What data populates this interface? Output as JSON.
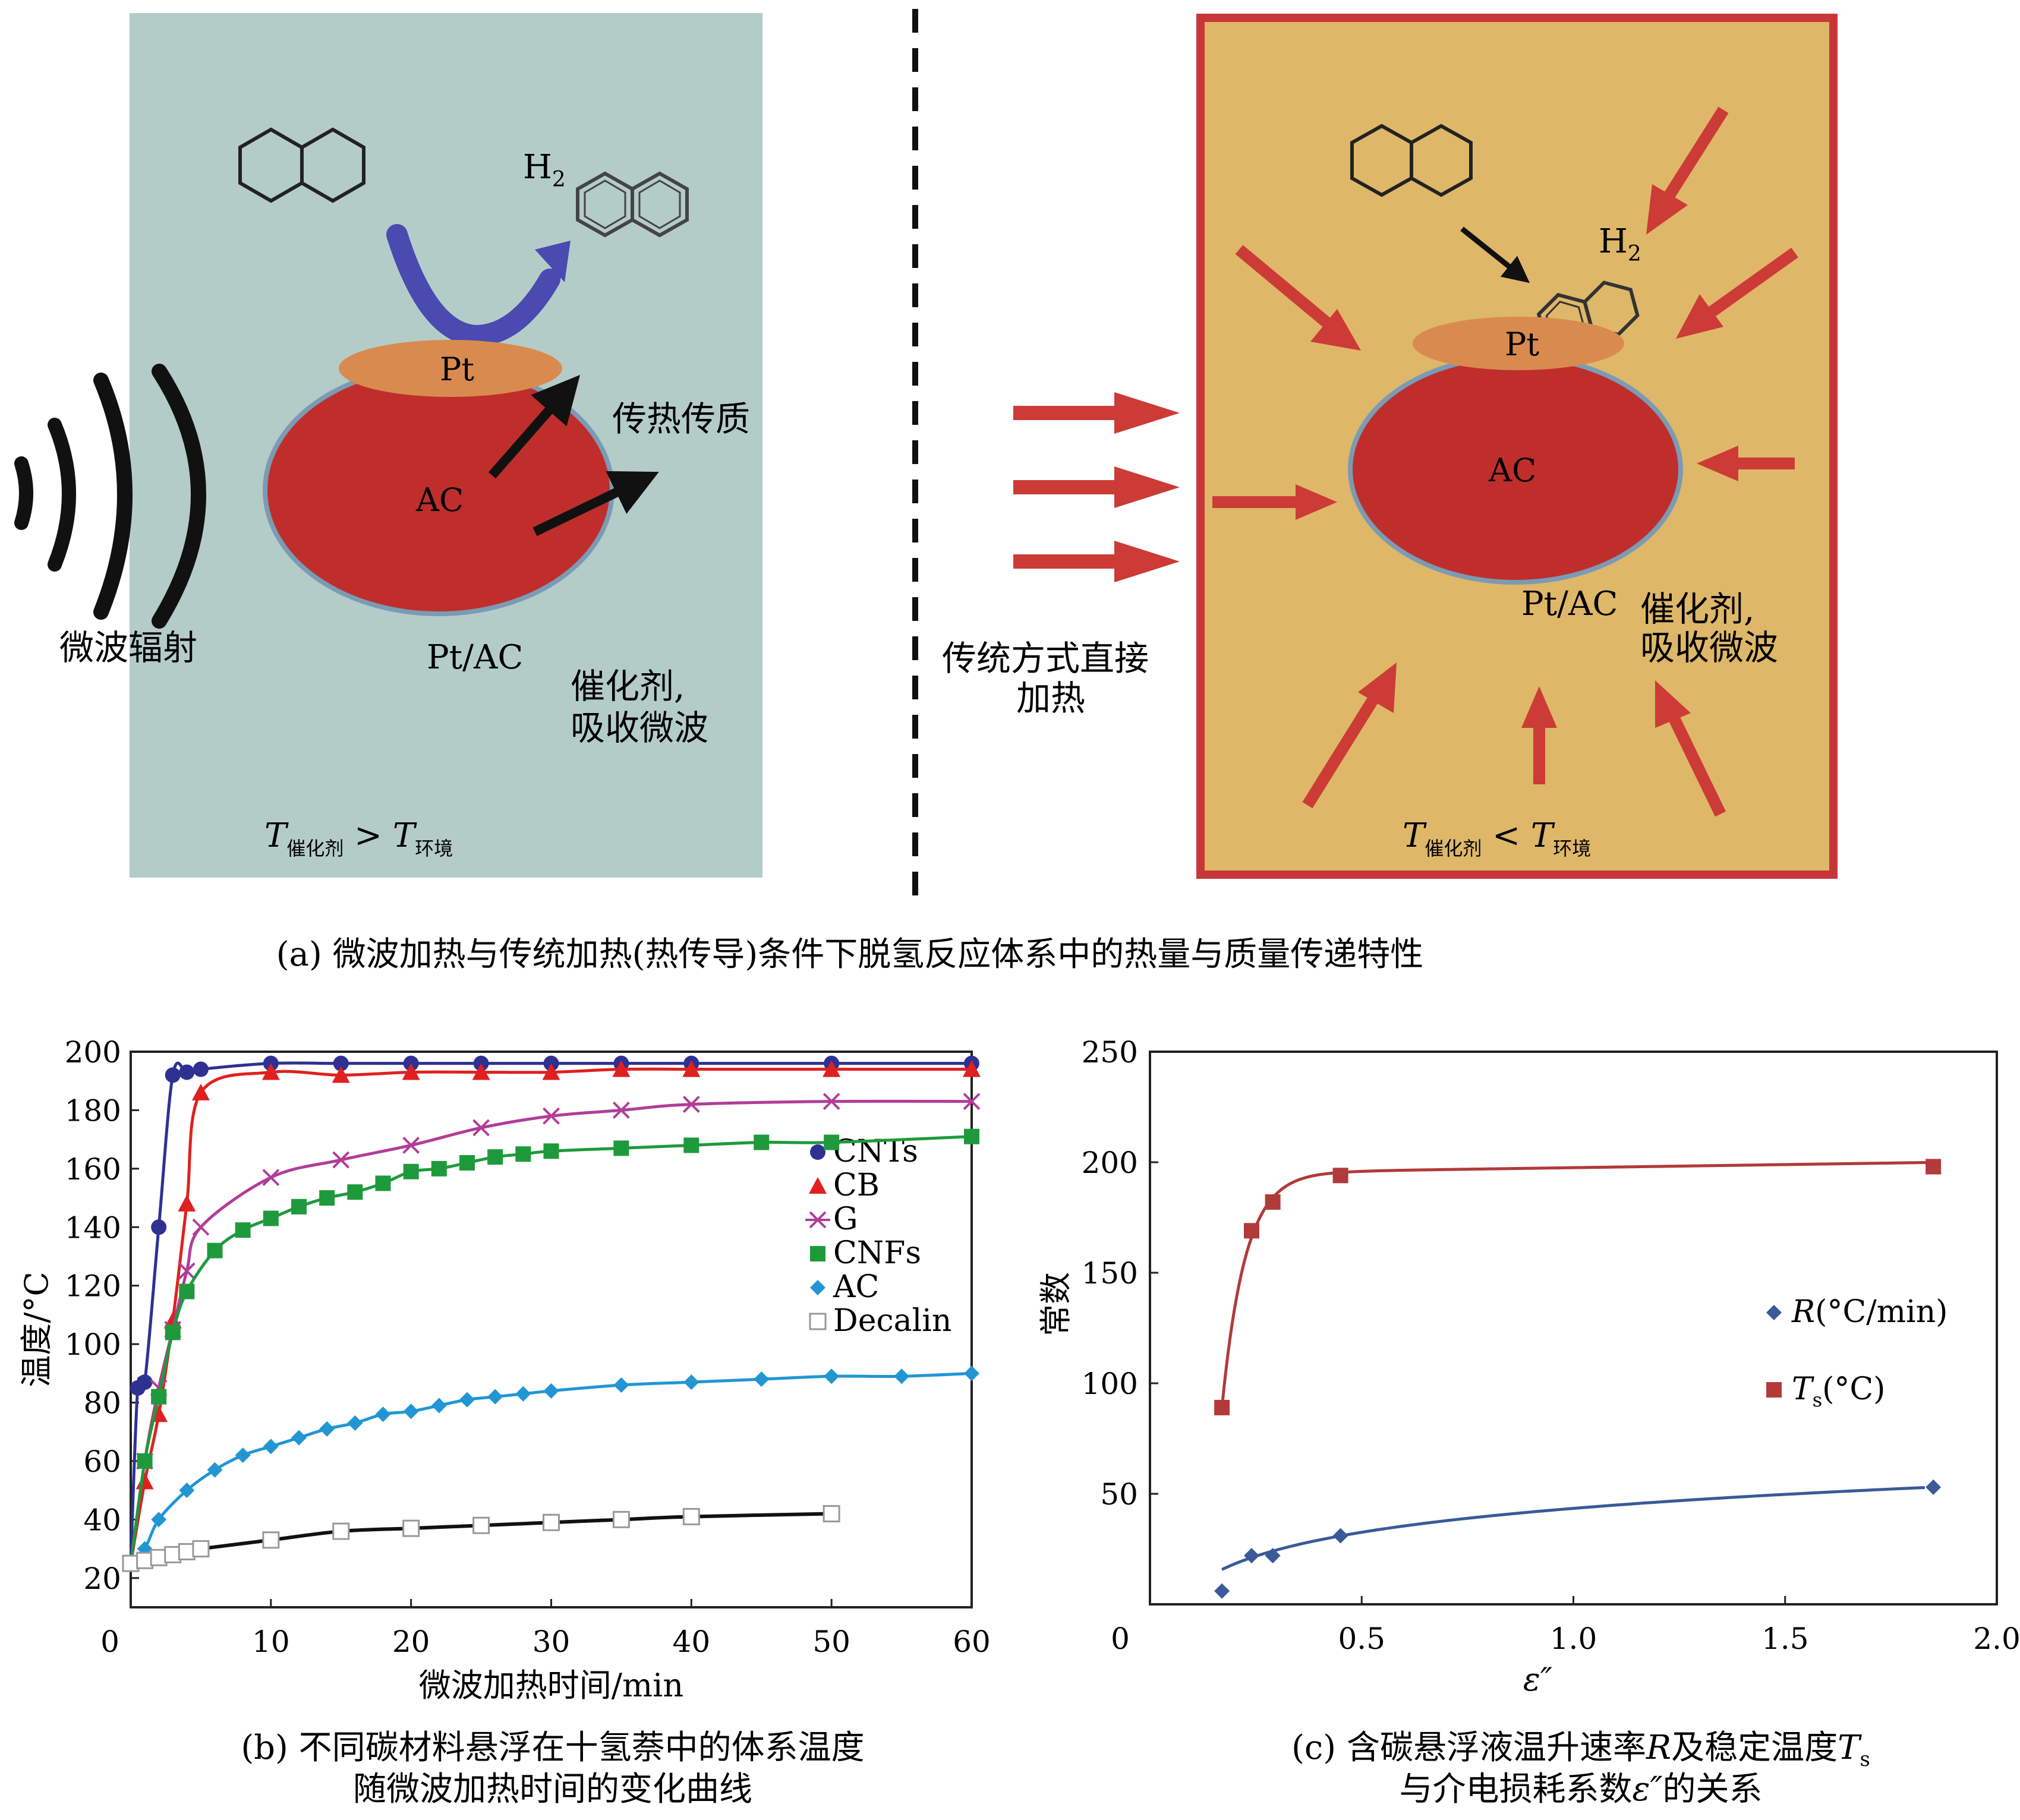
{
  "panel_a": {
    "left": {
      "microwave_label": "微波辐射",
      "h2": "H",
      "h2_sub": "2",
      "pt": "Pt",
      "ac": "AC",
      "transfer": "传热传质",
      "ptac": "Pt/AC",
      "catalyst_line1": "催化剂,",
      "catalyst_line2": "吸收微波",
      "temp_T1": "T",
      "temp_sub1": "催化剂",
      "temp_op": " > ",
      "temp_T2": "T",
      "temp_sub2": "环境"
    },
    "middle": {
      "line1": "传统方式直接",
      "line2": "加热"
    },
    "right": {
      "h2": "H",
      "h2_sub": "2",
      "pt": "Pt",
      "ac": "AC",
      "ptac": "Pt/AC",
      "catalyst_line1": "催化剂,",
      "catalyst_line2": "吸收微波",
      "temp_T1": "T",
      "temp_sub1": "催化剂",
      "temp_op": " < ",
      "temp_T2": "T",
      "temp_sub2": "环境"
    },
    "caption": "(a) 微波加热与传统加热(热传导)条件下脱氢反应体系中的热量与质量传递特性"
  },
  "colors": {
    "left_bg": "#b4ccc8",
    "right_bg": "#dfb769",
    "right_border": "#c8363a",
    "sphere": "#bf2e2b",
    "pt_disk": "#d98b4f",
    "blue_arrow": "#4a4ab0",
    "red_arrow": "#cc3b35"
  },
  "chart_b": {
    "caption_line1": "(b) 不同碳材料悬浮在十氢萘中的体系温度",
    "caption_line2": "随微波加热时间的变化曲线"
  },
  "chart_c": {
    "caption_line1_a": "(c) 含碳悬浮液温升速率",
    "caption_line1_R": "R",
    "caption_line1_b": "及稳定温度",
    "caption_line1_T": "T",
    "caption_line1_s": "s",
    "caption_line2_a": "与介电损耗系数",
    "caption_line2_eps": "ε″",
    "caption_line2_b": "的关系"
  },
  "chart_data": [
    {
      "type": "line",
      "xlabel": "微波加热时间/min",
      "ylabel": "温度/°C",
      "xlim": [
        0,
        60
      ],
      "ylim": [
        10,
        200
      ],
      "xticks": [
        "0",
        "10",
        "20",
        "30",
        "40",
        "50",
        "60"
      ],
      "yticks": [
        "20",
        "40",
        "60",
        "80",
        "100",
        "120",
        "140",
        "160",
        "180",
        "200"
      ],
      "legend_position": "right",
      "series": [
        {
          "name": "CNTs",
          "color": "#2e3192",
          "marker": "circle",
          "x": [
            0,
            0.5,
            1,
            2,
            3,
            4,
            5,
            10,
            15,
            20,
            25,
            30,
            35,
            40,
            50,
            60
          ],
          "y": [
            25,
            85,
            87,
            140,
            192,
            193,
            194,
            196,
            196,
            196,
            196,
            196,
            196,
            196,
            196,
            196
          ]
        },
        {
          "name": "CB",
          "color": "#e02020",
          "marker": "triangle",
          "x": [
            0,
            1,
            2,
            3,
            4,
            5,
            10,
            15,
            20,
            25,
            30,
            35,
            40,
            50,
            60
          ],
          "y": [
            25,
            53,
            76,
            108,
            148,
            186,
            193,
            192,
            193,
            193,
            193,
            194,
            194,
            194,
            194
          ]
        },
        {
          "name": "G",
          "color": "#b13d98",
          "marker": "cross",
          "x": [
            0,
            1,
            2,
            3,
            4,
            5,
            10,
            15,
            20,
            25,
            30,
            35,
            40,
            50,
            60
          ],
          "y": [
            25,
            60,
            85,
            105,
            125,
            140,
            157,
            163,
            168,
            174,
            178,
            180,
            182,
            183,
            183
          ]
        },
        {
          "name": "CNFs",
          "color": "#1e9a3c",
          "marker": "square",
          "x": [
            0,
            1,
            2,
            3,
            4,
            6,
            8,
            10,
            12,
            14,
            16,
            18,
            20,
            22,
            24,
            26,
            28,
            30,
            35,
            40,
            45,
            50,
            60
          ],
          "y": [
            25,
            60,
            82,
            104,
            118,
            132,
            139,
            143,
            147,
            150,
            152,
            155,
            159,
            160,
            162,
            164,
            165,
            166,
            167,
            168,
            169,
            169,
            171
          ]
        },
        {
          "name": "AC",
          "color": "#2196d3",
          "marker": "diamond",
          "x": [
            0,
            1,
            2,
            4,
            6,
            8,
            10,
            12,
            14,
            16,
            18,
            20,
            22,
            24,
            26,
            28,
            30,
            35,
            40,
            45,
            50,
            55,
            60
          ],
          "y": [
            25,
            30,
            40,
            50,
            57,
            62,
            65,
            68,
            71,
            73,
            76,
            77,
            79,
            81,
            82,
            83,
            84,
            86,
            87,
            88,
            89,
            89,
            90
          ]
        },
        {
          "name": "Decalin",
          "color": "#111111",
          "marker": "open-square",
          "x": [
            0,
            1,
            2,
            3,
            4,
            5,
            10,
            15,
            20,
            25,
            30,
            35,
            40,
            50
          ],
          "y": [
            25,
            26,
            27,
            28,
            29,
            30,
            33,
            36,
            37,
            38,
            39,
            40,
            41,
            42
          ]
        }
      ]
    },
    {
      "type": "line",
      "xlabel": "ε″",
      "ylabel": "常数",
      "xlim": [
        0,
        2.0
      ],
      "ylim": [
        0,
        250
      ],
      "xticks": [
        "0",
        "0.5",
        "1.0",
        "1.5",
        "2.0"
      ],
      "yticks": [
        "50",
        "100",
        "150",
        "200",
        "250"
      ],
      "legend_position": "right",
      "series": [
        {
          "name": "R(°C/min)",
          "name_var": "R",
          "name_unit": "(°C/min)",
          "color": "#3a5a98",
          "marker": "diamond",
          "x": [
            0.17,
            0.24,
            0.29,
            0.45,
            1.85
          ],
          "y": [
            6,
            22,
            22,
            31,
            53
          ]
        },
        {
          "name": "Ts(°C)",
          "name_var": "T",
          "name_sub": "s",
          "name_unit": "(°C)",
          "color": "#b23a3a",
          "marker": "square",
          "x": [
            0.17,
            0.24,
            0.29,
            0.45,
            1.85
          ],
          "y": [
            89,
            169,
            182,
            194,
            198
          ]
        }
      ]
    }
  ]
}
